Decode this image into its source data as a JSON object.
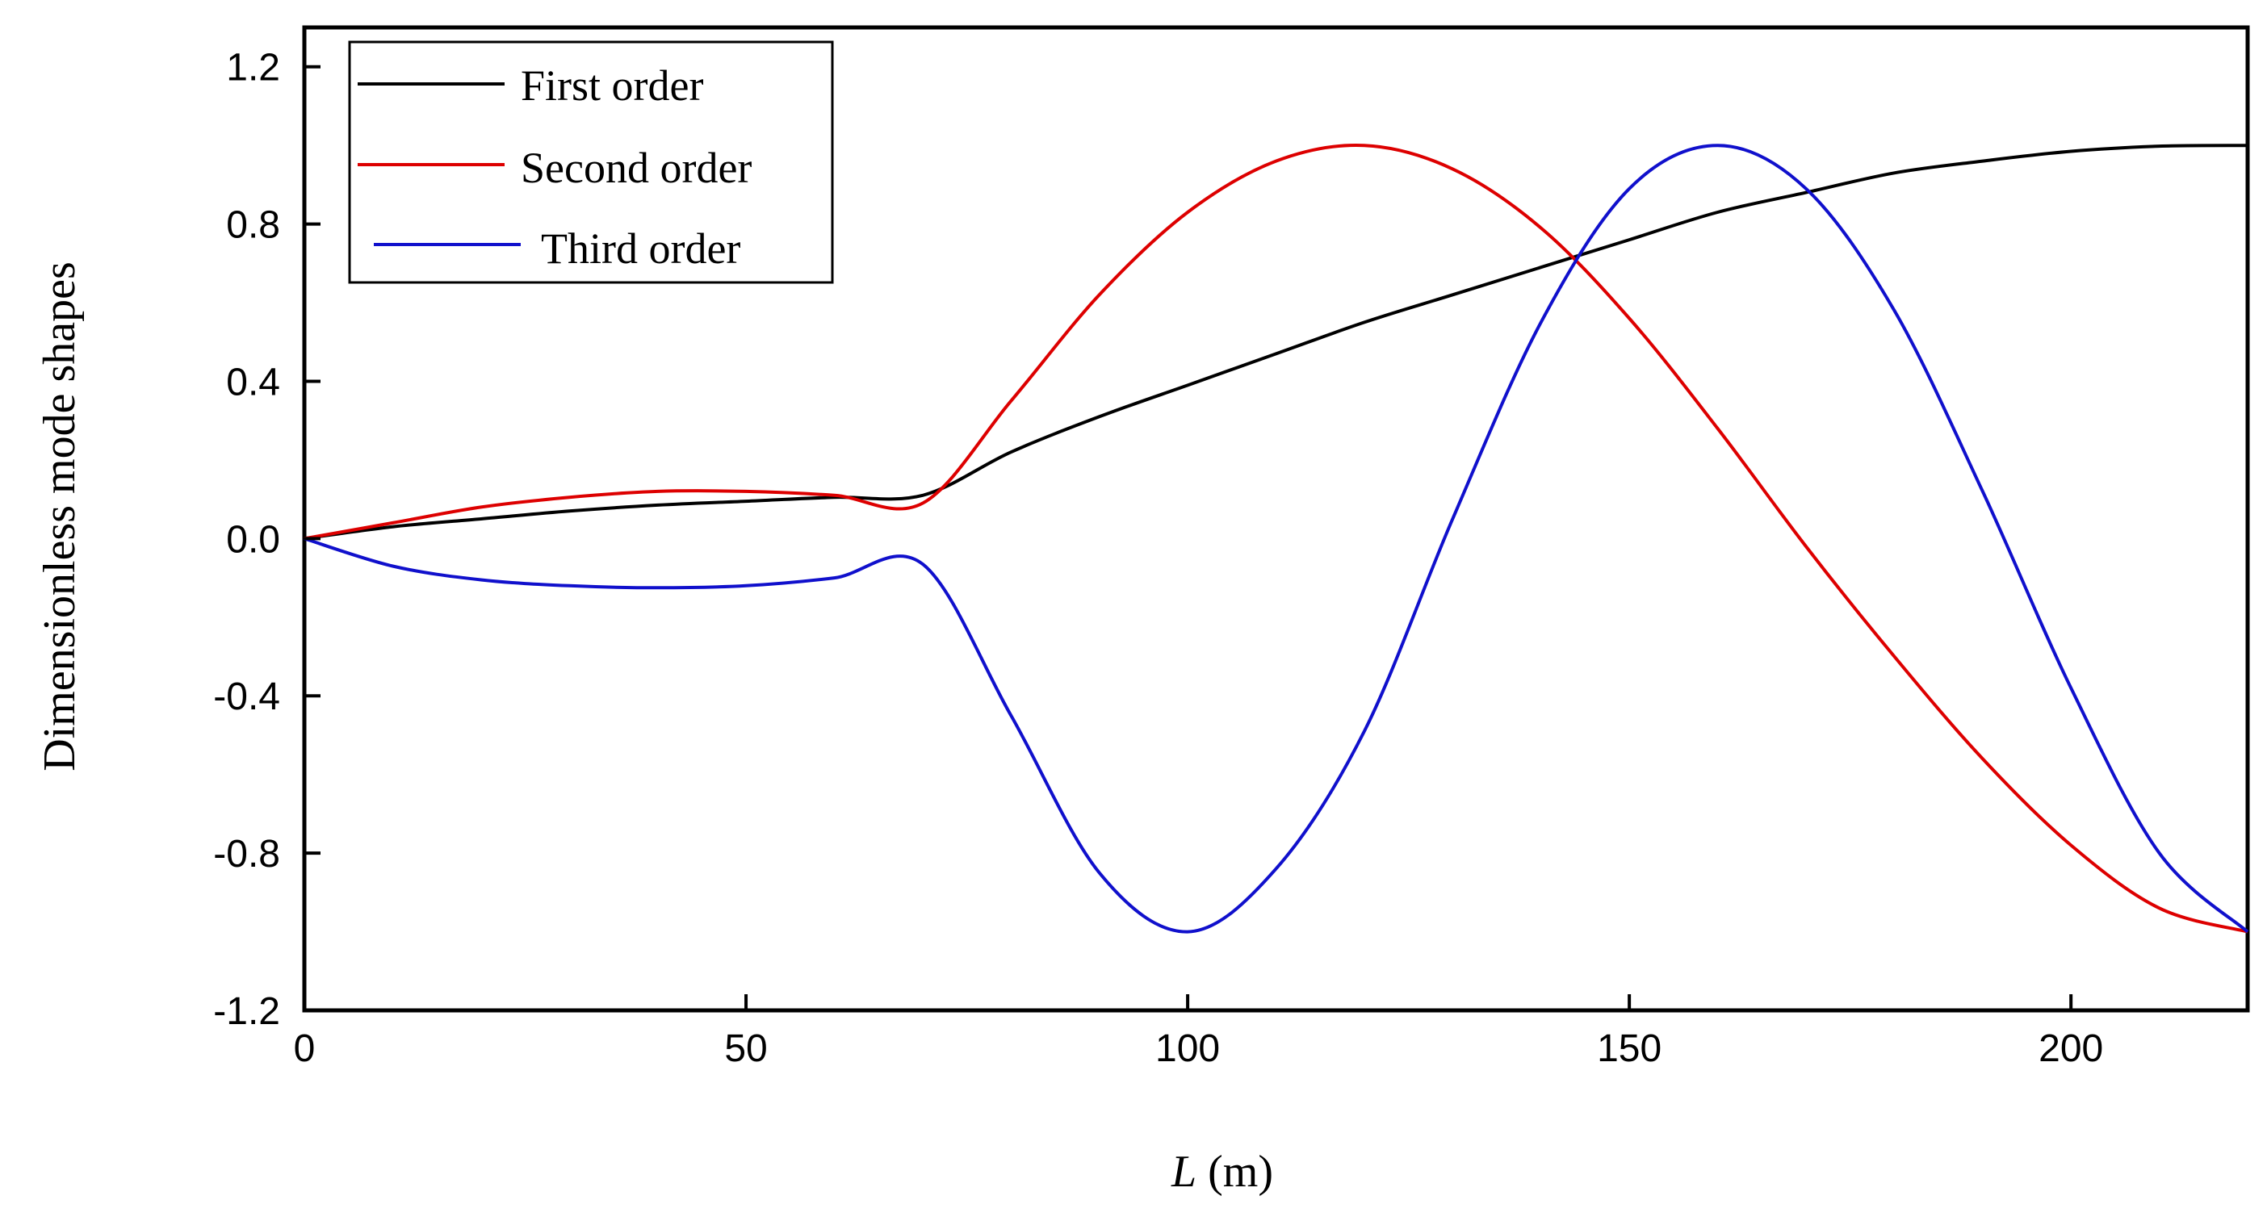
{
  "chart_data": {
    "type": "line",
    "title": "",
    "xlabel_var": "L",
    "xlabel_unit": " (m)",
    "ylabel": "Dimensionless mode shapes",
    "xlim": [
      0,
      220
    ],
    "ylim": [
      -1.2,
      1.3
    ],
    "xticks": [
      0,
      50,
      100,
      150,
      200
    ],
    "xtick_labels": [
      "0",
      "50",
      "100",
      "150",
      "200"
    ],
    "yticks": [
      -1.2,
      -0.8,
      -0.4,
      0.0,
      0.4,
      0.8,
      1.2
    ],
    "ytick_labels": [
      "-1.2",
      "-0.8",
      "-0.4",
      "0.0",
      "0.4",
      "0.8",
      "1.2"
    ],
    "grid": false,
    "legend_position": "top-left",
    "series": [
      {
        "name": "First order",
        "color": "#000000",
        "x": [
          0,
          10,
          20,
          30,
          40,
          50,
          60,
          70,
          80,
          90,
          100,
          110,
          120,
          130,
          140,
          150,
          160,
          170,
          180,
          190,
          200,
          210,
          220
        ],
        "y": [
          0,
          0.03,
          0.05,
          0.07,
          0.085,
          0.095,
          0.105,
          0.11,
          0.22,
          0.31,
          0.39,
          0.47,
          0.55,
          0.62,
          0.69,
          0.76,
          0.83,
          0.88,
          0.93,
          0.96,
          0.985,
          0.998,
          1.0
        ]
      },
      {
        "name": "Second order",
        "color": "#dd0000",
        "x": [
          0,
          10,
          20,
          30,
          40,
          50,
          60,
          70,
          80,
          90,
          100,
          110,
          120,
          130,
          140,
          150,
          160,
          170,
          180,
          190,
          200,
          210,
          220
        ],
        "y": [
          0,
          0.04,
          0.08,
          0.105,
          0.12,
          0.12,
          0.11,
          0.09,
          0.35,
          0.62,
          0.83,
          0.96,
          1.0,
          0.94,
          0.79,
          0.56,
          0.28,
          -0.02,
          -0.3,
          -0.56,
          -0.78,
          -0.94,
          -1.0
        ]
      },
      {
        "name": "Third order",
        "color": "#1010cc",
        "x": [
          0,
          10,
          20,
          30,
          40,
          50,
          60,
          70,
          80,
          90,
          100,
          110,
          120,
          130,
          140,
          150,
          160,
          170,
          180,
          190,
          200,
          210,
          220
        ],
        "y": [
          0,
          -0.07,
          -0.105,
          -0.12,
          -0.125,
          -0.12,
          -0.1,
          -0.065,
          -0.45,
          -0.85,
          -1.0,
          -0.84,
          -0.49,
          0.05,
          0.55,
          0.89,
          1.0,
          0.89,
          0.58,
          0.12,
          -0.38,
          -0.8,
          -1.0
        ]
      }
    ]
  }
}
